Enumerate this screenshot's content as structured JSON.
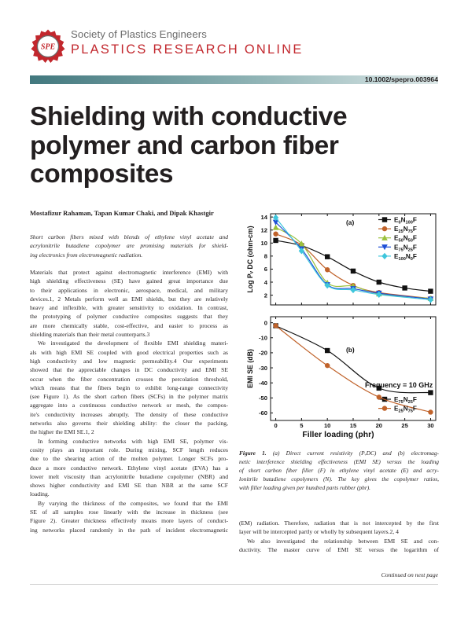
{
  "header": {
    "logo_text": "SPE",
    "society": "Society of Plastics Engineers",
    "publication": "PLASTICS RESEARCH ONLINE",
    "doi": "10.1002/spepro.003964",
    "colors": {
      "brand_red": "#c2272d",
      "band_teal": "#42787e"
    }
  },
  "title_lines": [
    "Shielding with conductive",
    "polymer and carbon fiber",
    "composites"
  ],
  "authors": "Mostafizur Rahaman, Tapan Kumar Chaki, and Dipak Khastgir",
  "abstract_lines": [
    "Short carbon fibers mixed with blends of ethylene vinyl acetate and",
    "acrylonitrile butadiene copolymer are promising materials for shield-",
    "ing electronics from electromagnetic radiation."
  ],
  "body_left_lines": [
    "Materials that protect against electromagnetic interference (EMI) with",
    "high shielding effectiveness (SE) have gained great importance due",
    "to their applications in electronic, aerospace, medical, and military",
    "devices.1, 2 Metals perform well as EMI shields, but they are relatively",
    "heavy and inflexible, with greater sensitivity to oxidation. In contrast,",
    "the prototyping of polymer conductive composites suggests that they",
    "are more chemically stable, cost-effective, and easier to process as",
    "shielding materials than their metal counterparts.3",
    "We investigated the development of flexible EMI shielding materi-",
    "als with high EMI SE coupled with good electrical properties such as",
    "high conductivity and low magnetic permeability.4 Our experiments",
    "showed that the appreciable changes in DC conductivity and EMI SE",
    "occur when the fiber concentration crosses the percolation threshold,",
    "which means that the fibers begin to exhibit long-range connectivity",
    "(see Figure 1). As the short carbon fibers (SCFs) in the polymer matrix",
    "aggregate into a continuous conductive network or mesh, the compos-",
    "ite's conductivity increases abruptly. The density of these conductive",
    "networks also governs their shielding ability: the closer the packing,",
    "the higher the EMI SE.1, 2",
    "In forming conductive networks with high EMI SE, polymer vis-",
    "cosity plays an important role. During mixing, SCF length reduces",
    "due to the shearing action of the molten polymer. Longer SCFs pro-",
    "duce a more conductive network. Ethylene vinyl acetate (EVA) has a",
    "lower melt viscosity than acrylonitrile butadiene copolymer (NBR) and",
    "shows higher conductivity and EMI SE than NBR at the same SCF",
    "loading.",
    "By varying the thickness of the composites, we found that the EMI",
    "SE of all samples rose linearly with the increase in thickness (see",
    "Figure 2). Greater thickness effectively means more layers of conduct-",
    "ing networks placed randomly in the path of incident electromagnetic"
  ],
  "caption": {
    "label": "Figure 1.",
    "lines": [
      "(a) Direct current resistivity (PᵥDC) and (b) electromag-",
      "netic interference shielding effectiveness (EMI SE) versus the loading",
      "of short carbon fiber filler (F) in ethylene vinyl acetate (E) and acry-",
      "lonitrile butadiene copolymers (N). The key gives the copolymer ratios,",
      "with filler loading given per hundred parts rubber (phr)."
    ]
  },
  "body_right_lines": [
    "(EM) radiation. Therefore, radiation that is not intercepted by the first",
    "layer will be intercepted partly or wholly by subsequent layers.2, 4",
    "We also investigated the relationship between EMI SE and con-",
    "ductivity. The master curve of EMI SE versus the logarithm of"
  ],
  "continued": "Continued on next page",
  "chart_data": [
    {
      "type": "line",
      "panel_label": "(a)",
      "xlabel": "",
      "ylabel": "Log Pᵥ DC (ohm-cm)",
      "x": [
        0,
        5,
        10,
        15,
        20,
        25,
        30
      ],
      "xlim": [
        -1,
        31
      ],
      "ylim": [
        0.5,
        14.5
      ],
      "yticks": [
        "14",
        "12",
        "10",
        "8",
        "6",
        "4",
        "2"
      ],
      "ytick_values": [
        14,
        12,
        10,
        8,
        6,
        4,
        2
      ],
      "legend": "top-right",
      "series": [
        {
          "name": "E0N100F",
          "sub": [
            "0",
            "100"
          ],
          "color": "#111111",
          "marker": "square",
          "values": [
            10.4,
            9.6,
            7.9,
            5.7,
            4.0,
            3.1,
            2.6
          ]
        },
        {
          "name": "E25N75F",
          "sub": [
            "25",
            "75"
          ],
          "color": "#c0622a",
          "marker": "circle",
          "values": [
            11.4,
            9.7,
            5.9,
            3.5,
            2.4,
            null,
            1.5
          ]
        },
        {
          "name": "E50N50F",
          "sub": [
            "50",
            "50"
          ],
          "color": "#9ac13c",
          "marker": "triangle",
          "values": [
            12.4,
            9.9,
            3.9,
            3.4,
            2.2,
            null,
            1.5
          ]
        },
        {
          "name": "E75N25F",
          "sub": [
            "75",
            "25"
          ],
          "color": "#1f4fd6",
          "marker": "down-triangle",
          "values": [
            13.2,
            9.1,
            3.6,
            3.0,
            2.3,
            null,
            1.4
          ]
        },
        {
          "name": "E100N0F",
          "sub": [
            "100",
            "0"
          ],
          "color": "#3fc6dc",
          "marker": "diamond",
          "values": [
            13.9,
            8.8,
            3.5,
            2.8,
            2.1,
            null,
            1.3
          ]
        }
      ]
    },
    {
      "type": "line",
      "panel_label": "(b)",
      "annotation": "Frequency = 10 GHz",
      "xlabel": "Filler loading (phr)",
      "ylabel": "EMI SE (dB)",
      "x": [
        0,
        10,
        20,
        30
      ],
      "xticks": [
        0,
        5,
        10,
        15,
        20,
        25,
        30
      ],
      "xlim": [
        -1,
        31
      ],
      "ylim": [
        -65,
        4
      ],
      "yticks": [
        "-60",
        "-50",
        "-40",
        "-30",
        "-20",
        "-10",
        "0"
      ],
      "ytick_values": [
        -60,
        -50,
        -40,
        -30,
        -20,
        -10,
        0
      ],
      "legend": "bottom-right",
      "series": [
        {
          "name": "E75N25F",
          "sub": [
            "75",
            "25"
          ],
          "color": "#111111",
          "marker": "square",
          "values": [
            -2.0,
            -18.5,
            -43.5,
            -46.5
          ]
        },
        {
          "name": "E25N75F",
          "sub": [
            "25",
            "75"
          ],
          "color": "#c0622a",
          "marker": "circle",
          "values": [
            -2.0,
            -28.5,
            -49.5,
            -59.5
          ]
        }
      ]
    }
  ]
}
